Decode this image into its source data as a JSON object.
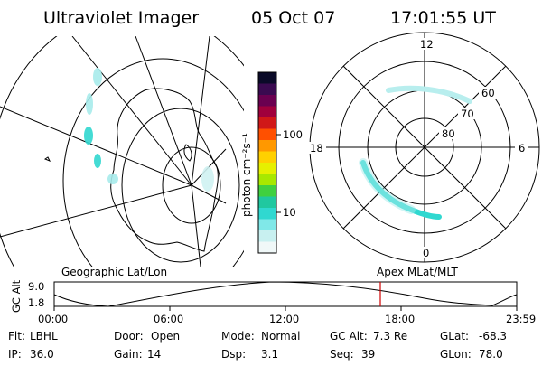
{
  "header": {
    "title": "Ultraviolet Imager",
    "date": "05 Oct 07",
    "time": "17:01:55 UT"
  },
  "geo_panel": {
    "label": "Geographic Lat/Lon"
  },
  "colorbar": {
    "unit_label": "photon cm⁻²s⁻¹",
    "ticks": [
      "100",
      "10"
    ],
    "colors": [
      "#0a0a28",
      "#3a0a50",
      "#6a0050",
      "#a0003c",
      "#d01818",
      "#ff5000",
      "#ff9800",
      "#ffd000",
      "#e6f000",
      "#a8e800",
      "#40d040",
      "#20c8a0",
      "#30d8d0",
      "#80e8e8",
      "#c8f0f0",
      "#f0f8f8"
    ]
  },
  "polar_panel": {
    "label": "Apex MLat/MLT",
    "mlt_labels": {
      "top": "12",
      "left": "18",
      "right": "6",
      "bottom": "0"
    },
    "mlat_labels": [
      "60",
      "70",
      "80"
    ]
  },
  "altitude_strip": {
    "axis_label": "GC Alt",
    "ymax": "9.0",
    "ymin": "1.8",
    "x_ticks": [
      "00:00",
      "06:00",
      "12:00",
      "18:00",
      "23:59"
    ],
    "marker_color": "#d00000"
  },
  "status": {
    "row1": [
      {
        "label": "Flt:",
        "value": "LBHL"
      },
      {
        "label": "Door:",
        "value": "Open"
      },
      {
        "label": "Mode:",
        "value": "Normal"
      },
      {
        "label": "GC Alt:",
        "value": "7.3 Re"
      },
      {
        "label": "GLat:",
        "value": "-68.3"
      }
    ],
    "row2": [
      {
        "label": "IP:",
        "value": "36.0"
      },
      {
        "label": "Gain:",
        "value": "14"
      },
      {
        "label": "Dsp:",
        "value": "3.1"
      },
      {
        "label": "Seq:",
        "value": "39"
      },
      {
        "label": "GLon:",
        "value": "78.0"
      }
    ]
  }
}
